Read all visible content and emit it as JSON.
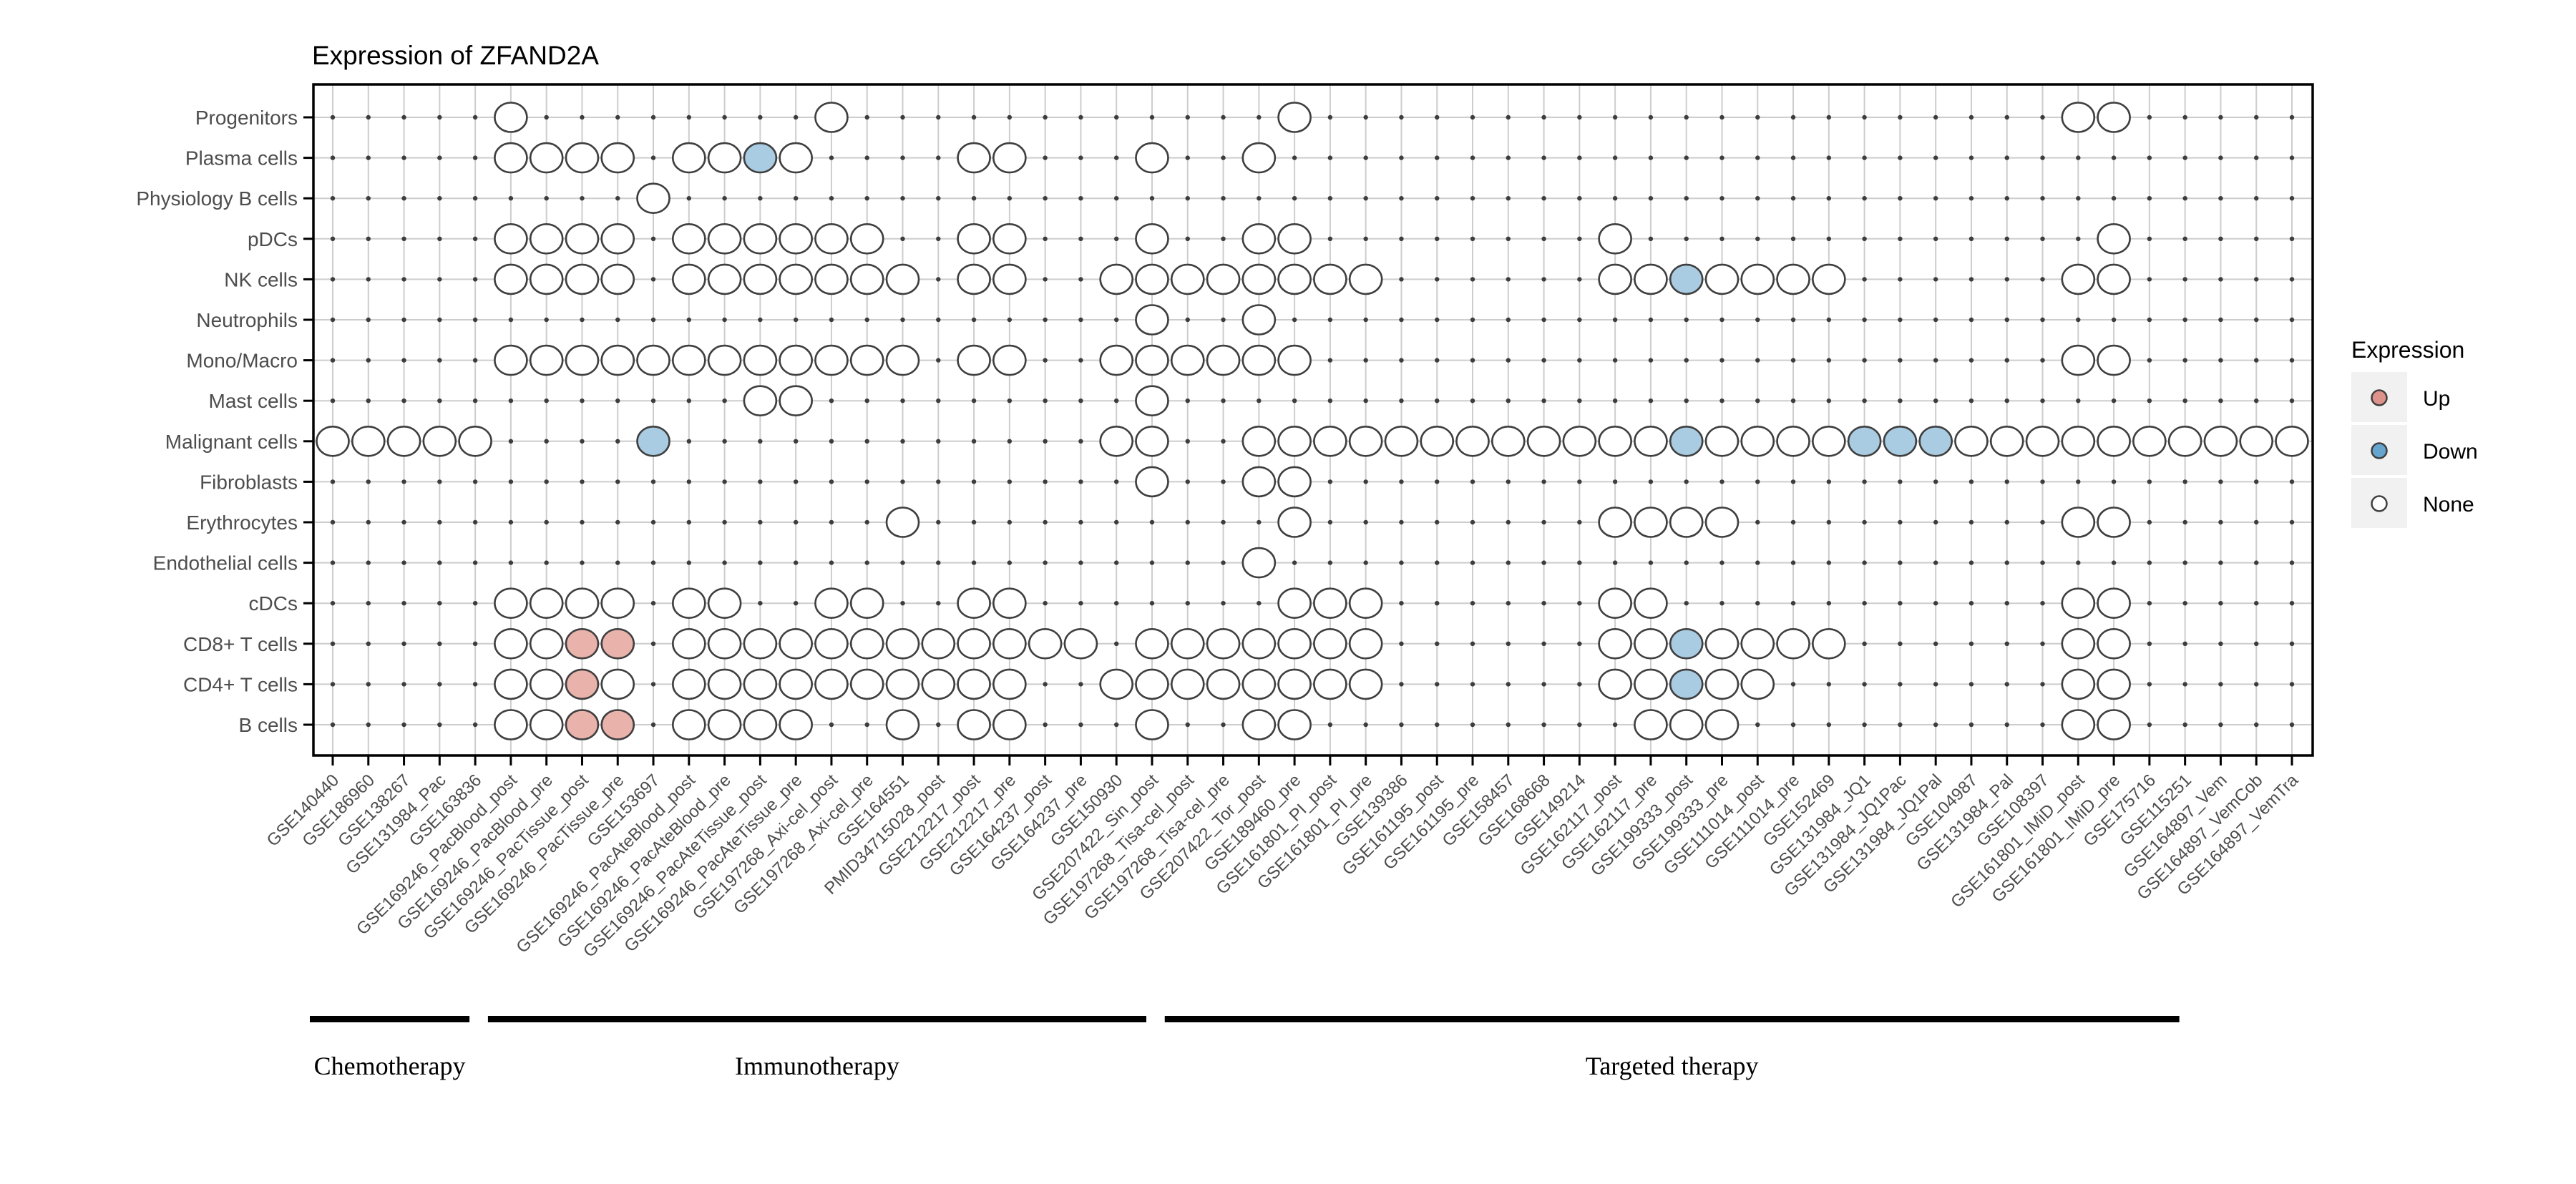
{
  "title": "Expression of ZFAND2A",
  "legend": {
    "title": "Expression",
    "items": [
      {
        "label": "Up",
        "status": "u"
      },
      {
        "label": "Down",
        "status": "d"
      },
      {
        "label": "None",
        "status": "n"
      }
    ]
  },
  "colors": {
    "up_fill": "#E9B3AC",
    "down_fill": "#A9CCE2",
    "none_fill": "#FFFFFF",
    "legend_up_fill": "#DD938B",
    "legend_down_fill": "#66A5CE",
    "circle_stroke": "#3F3F3F",
    "grid_line": "#CDCDCD",
    "grid_dot": "#3D3D3D",
    "axis_text": "#4D4D4D",
    "frame": "#000000",
    "legend_key_bg": "#F1F1F1"
  },
  "chart_data": {
    "type": "scatter",
    "title": "Expression of ZFAND2A",
    "xlabel": "",
    "ylabel": "",
    "legend_position": "right",
    "grid": true,
    "cell_types": [
      "Progenitors",
      "Plasma cells",
      "Physiology B cells",
      "pDCs",
      "NK cells",
      "Neutrophils",
      "Mono/Macro",
      "Mast cells",
      "Malignant cells",
      "Fibroblasts",
      "Erythrocytes",
      "Endothelial cells",
      "cDCs",
      "CD8+ T cells",
      "CD4+ T cells",
      "B cells"
    ],
    "datasets": [
      "GSE140440",
      "GSE186960",
      "GSE138267",
      "GSE131984_Pac",
      "GSE163836",
      "GSE169246_PacBlood_post",
      "GSE169246_PacBlood_pre",
      "GSE169246_PacTissue_post",
      "GSE169246_PacTissue_pre",
      "GSE153697",
      "GSE169246_PacAteBlood_post",
      "GSE169246_PacAteBlood_pre",
      "GSE169246_PacAteTissue_post",
      "GSE169246_PacAteTissue_pre",
      "GSE197268_Axi-cel_post",
      "GSE197268_Axi-cel_pre",
      "GSE164551",
      "PMID34715028_post",
      "GSE212217_post",
      "GSE212217_pre",
      "GSE164237_post",
      "GSE164237_pre",
      "GSE150930",
      "GSE207422_Sin_post",
      "GSE197268_Tisa-cel_post",
      "GSE197268_Tisa-cel_pre",
      "GSE207422_Tor_post",
      "GSE189460_pre",
      "GSE161801_PI_post",
      "GSE161801_PI_pre",
      "GSE139386",
      "GSE161195_post",
      "GSE161195_pre",
      "GSE158457",
      "GSE168668",
      "GSE149214",
      "GSE162117_post",
      "GSE162117_pre",
      "GSE199333_post",
      "GSE199333_pre",
      "GSE111014_post",
      "GSE111014_pre",
      "GSE152469",
      "GSE131984_JQ1",
      "GSE131984_JQ1Pac",
      "GSE131984_JQ1Pal",
      "GSE104987",
      "GSE131984_Pal",
      "GSE108397",
      "GSE161801_IMiD_post",
      "GSE161801_IMiD_pre",
      "GSE175716",
      "GSE115251",
      "GSE164897_Vem",
      "GSE164897_VemCob",
      "GSE164897_VemTra"
    ],
    "therapy_groups": [
      {
        "label": "Chemotherapy",
        "from_col": 1,
        "to_col": 5
      },
      {
        "label": "Immunotherapy",
        "from_col": 6,
        "to_col": 24
      },
      {
        "label": "Targeted therapy",
        "from_col": 25,
        "to_col": 53
      }
    ],
    "circles": [
      {
        "row": 1,
        "cols": [
          [
            6,
            "n"
          ],
          [
            15,
            "n"
          ],
          [
            28,
            "n"
          ],
          [
            50,
            "n"
          ],
          [
            51,
            "n"
          ]
        ]
      },
      {
        "row": 2,
        "cols": [
          [
            6,
            "n"
          ],
          [
            7,
            "n"
          ],
          [
            8,
            "n"
          ],
          [
            9,
            "n"
          ],
          [
            11,
            "n"
          ],
          [
            12,
            "n"
          ],
          [
            13,
            "d"
          ],
          [
            14,
            "n"
          ],
          [
            19,
            "n"
          ],
          [
            20,
            "n"
          ],
          [
            24,
            "n"
          ],
          [
            27,
            "n"
          ]
        ]
      },
      {
        "row": 3,
        "cols": [
          [
            10,
            "n"
          ]
        ]
      },
      {
        "row": 4,
        "cols": [
          [
            6,
            "n"
          ],
          [
            7,
            "n"
          ],
          [
            8,
            "n"
          ],
          [
            9,
            "n"
          ],
          [
            11,
            "n"
          ],
          [
            12,
            "n"
          ],
          [
            13,
            "n"
          ],
          [
            14,
            "n"
          ],
          [
            15,
            "n"
          ],
          [
            16,
            "n"
          ],
          [
            19,
            "n"
          ],
          [
            20,
            "n"
          ],
          [
            24,
            "n"
          ],
          [
            27,
            "n"
          ],
          [
            28,
            "n"
          ],
          [
            37,
            "n"
          ],
          [
            51,
            "n"
          ]
        ]
      },
      {
        "row": 5,
        "cols": [
          [
            6,
            "n"
          ],
          [
            7,
            "n"
          ],
          [
            8,
            "n"
          ],
          [
            9,
            "n"
          ],
          [
            11,
            "n"
          ],
          [
            12,
            "n"
          ],
          [
            13,
            "n"
          ],
          [
            14,
            "n"
          ],
          [
            15,
            "n"
          ],
          [
            16,
            "n"
          ],
          [
            17,
            "n"
          ],
          [
            19,
            "n"
          ],
          [
            20,
            "n"
          ],
          [
            23,
            "n"
          ],
          [
            24,
            "n"
          ],
          [
            25,
            "n"
          ],
          [
            26,
            "n"
          ],
          [
            27,
            "n"
          ],
          [
            28,
            "n"
          ],
          [
            29,
            "n"
          ],
          [
            30,
            "n"
          ],
          [
            37,
            "n"
          ],
          [
            38,
            "n"
          ],
          [
            39,
            "d"
          ],
          [
            40,
            "n"
          ],
          [
            41,
            "n"
          ],
          [
            42,
            "n"
          ],
          [
            43,
            "n"
          ],
          [
            50,
            "n"
          ],
          [
            51,
            "n"
          ]
        ]
      },
      {
        "row": 6,
        "cols": [
          [
            24,
            "n"
          ],
          [
            27,
            "n"
          ]
        ]
      },
      {
        "row": 7,
        "cols": [
          [
            6,
            "n"
          ],
          [
            7,
            "n"
          ],
          [
            8,
            "n"
          ],
          [
            9,
            "n"
          ],
          [
            10,
            "n"
          ],
          [
            11,
            "n"
          ],
          [
            12,
            "n"
          ],
          [
            13,
            "n"
          ],
          [
            14,
            "n"
          ],
          [
            15,
            "n"
          ],
          [
            16,
            "n"
          ],
          [
            17,
            "n"
          ],
          [
            19,
            "n"
          ],
          [
            20,
            "n"
          ],
          [
            23,
            "n"
          ],
          [
            24,
            "n"
          ],
          [
            25,
            "n"
          ],
          [
            26,
            "n"
          ],
          [
            27,
            "n"
          ],
          [
            28,
            "n"
          ],
          [
            50,
            "n"
          ],
          [
            51,
            "n"
          ]
        ]
      },
      {
        "row": 8,
        "cols": [
          [
            13,
            "n"
          ],
          [
            14,
            "n"
          ],
          [
            24,
            "n"
          ]
        ]
      },
      {
        "row": 9,
        "cols": [
          [
            1,
            "n"
          ],
          [
            2,
            "n"
          ],
          [
            3,
            "n"
          ],
          [
            4,
            "n"
          ],
          [
            5,
            "n"
          ],
          [
            10,
            "d"
          ],
          [
            23,
            "n"
          ],
          [
            24,
            "n"
          ],
          [
            27,
            "n"
          ],
          [
            28,
            "n"
          ],
          [
            29,
            "n"
          ],
          [
            30,
            "n"
          ],
          [
            31,
            "n"
          ],
          [
            32,
            "n"
          ],
          [
            33,
            "n"
          ],
          [
            34,
            "n"
          ],
          [
            35,
            "n"
          ],
          [
            36,
            "n"
          ],
          [
            37,
            "n"
          ],
          [
            38,
            "n"
          ],
          [
            39,
            "d"
          ],
          [
            40,
            "n"
          ],
          [
            41,
            "n"
          ],
          [
            42,
            "n"
          ],
          [
            43,
            "n"
          ],
          [
            44,
            "d"
          ],
          [
            45,
            "d"
          ],
          [
            46,
            "d"
          ],
          [
            47,
            "n"
          ],
          [
            48,
            "n"
          ],
          [
            49,
            "n"
          ],
          [
            50,
            "n"
          ],
          [
            51,
            "n"
          ],
          [
            52,
            "n"
          ],
          [
            53,
            "n"
          ],
          [
            54,
            "n"
          ],
          [
            55,
            "n"
          ],
          [
            56,
            "n"
          ]
        ]
      },
      {
        "row": 10,
        "cols": [
          [
            24,
            "n"
          ],
          [
            27,
            "n"
          ],
          [
            28,
            "n"
          ]
        ]
      },
      {
        "row": 11,
        "cols": [
          [
            17,
            "n"
          ],
          [
            28,
            "n"
          ],
          [
            37,
            "n"
          ],
          [
            38,
            "n"
          ],
          [
            39,
            "n"
          ],
          [
            40,
            "n"
          ],
          [
            50,
            "n"
          ],
          [
            51,
            "n"
          ]
        ]
      },
      {
        "row": 12,
        "cols": [
          [
            27,
            "n"
          ]
        ]
      },
      {
        "row": 13,
        "cols": [
          [
            6,
            "n"
          ],
          [
            7,
            "n"
          ],
          [
            8,
            "n"
          ],
          [
            9,
            "n"
          ],
          [
            11,
            "n"
          ],
          [
            12,
            "n"
          ],
          [
            15,
            "n"
          ],
          [
            16,
            "n"
          ],
          [
            19,
            "n"
          ],
          [
            20,
            "n"
          ],
          [
            28,
            "n"
          ],
          [
            29,
            "n"
          ],
          [
            30,
            "n"
          ],
          [
            37,
            "n"
          ],
          [
            38,
            "n"
          ],
          [
            50,
            "n"
          ],
          [
            51,
            "n"
          ]
        ]
      },
      {
        "row": 14,
        "cols": [
          [
            6,
            "n"
          ],
          [
            7,
            "n"
          ],
          [
            8,
            "u"
          ],
          [
            9,
            "u"
          ],
          [
            11,
            "n"
          ],
          [
            12,
            "n"
          ],
          [
            13,
            "n"
          ],
          [
            14,
            "n"
          ],
          [
            15,
            "n"
          ],
          [
            16,
            "n"
          ],
          [
            17,
            "n"
          ],
          [
            18,
            "n"
          ],
          [
            19,
            "n"
          ],
          [
            20,
            "n"
          ],
          [
            21,
            "n"
          ],
          [
            22,
            "n"
          ],
          [
            24,
            "n"
          ],
          [
            25,
            "n"
          ],
          [
            26,
            "n"
          ],
          [
            27,
            "n"
          ],
          [
            28,
            "n"
          ],
          [
            29,
            "n"
          ],
          [
            30,
            "n"
          ],
          [
            37,
            "n"
          ],
          [
            38,
            "n"
          ],
          [
            39,
            "d"
          ],
          [
            40,
            "n"
          ],
          [
            41,
            "n"
          ],
          [
            42,
            "n"
          ],
          [
            43,
            "n"
          ],
          [
            50,
            "n"
          ],
          [
            51,
            "n"
          ]
        ]
      },
      {
        "row": 15,
        "cols": [
          [
            6,
            "n"
          ],
          [
            7,
            "n"
          ],
          [
            8,
            "u"
          ],
          [
            9,
            "n"
          ],
          [
            11,
            "n"
          ],
          [
            12,
            "n"
          ],
          [
            13,
            "n"
          ],
          [
            14,
            "n"
          ],
          [
            15,
            "n"
          ],
          [
            16,
            "n"
          ],
          [
            17,
            "n"
          ],
          [
            18,
            "n"
          ],
          [
            19,
            "n"
          ],
          [
            20,
            "n"
          ],
          [
            23,
            "n"
          ],
          [
            24,
            "n"
          ],
          [
            25,
            "n"
          ],
          [
            26,
            "n"
          ],
          [
            27,
            "n"
          ],
          [
            28,
            "n"
          ],
          [
            29,
            "n"
          ],
          [
            30,
            "n"
          ],
          [
            37,
            "n"
          ],
          [
            38,
            "n"
          ],
          [
            39,
            "d"
          ],
          [
            40,
            "n"
          ],
          [
            41,
            "n"
          ],
          [
            50,
            "n"
          ],
          [
            51,
            "n"
          ]
        ]
      },
      {
        "row": 16,
        "cols": [
          [
            6,
            "n"
          ],
          [
            7,
            "n"
          ],
          [
            8,
            "u"
          ],
          [
            9,
            "u"
          ],
          [
            11,
            "n"
          ],
          [
            12,
            "n"
          ],
          [
            13,
            "n"
          ],
          [
            14,
            "n"
          ],
          [
            17,
            "n"
          ],
          [
            19,
            "n"
          ],
          [
            20,
            "n"
          ],
          [
            24,
            "n"
          ],
          [
            27,
            "n"
          ],
          [
            28,
            "n"
          ],
          [
            38,
            "n"
          ],
          [
            39,
            "n"
          ],
          [
            40,
            "n"
          ],
          [
            50,
            "n"
          ],
          [
            51,
            "n"
          ]
        ]
      }
    ]
  }
}
